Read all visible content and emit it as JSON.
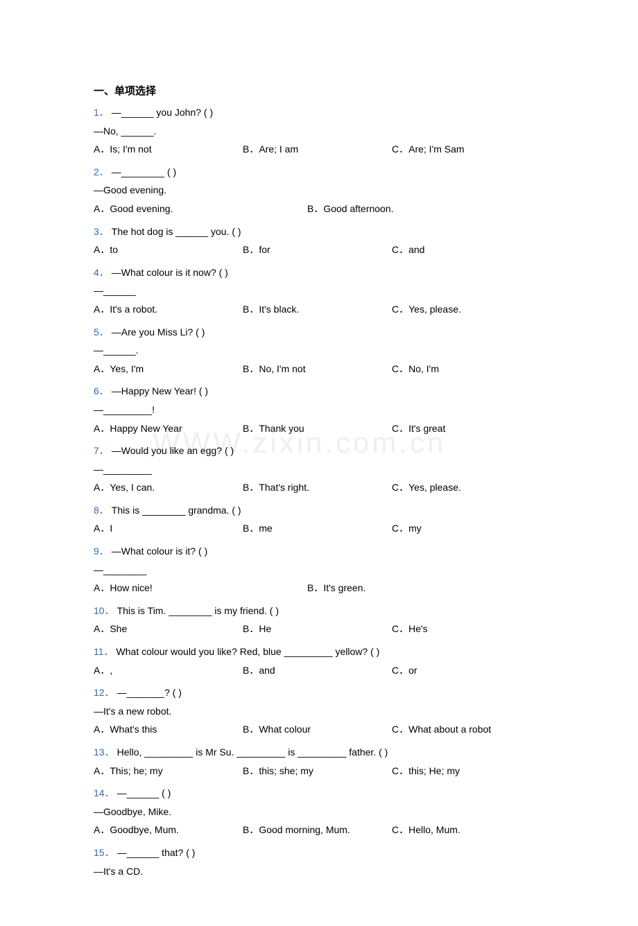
{
  "section_title": "一、单项选择",
  "watermark_text": "WWW.zixin.com.cn",
  "watermark_color": "#efefef",
  "question_num_color": "#2a6db5",
  "text_color": "#000000",
  "background_color": "#ffffff",
  "font_size_body": 14,
  "font_size_section": 15,
  "questions": [
    {
      "num": "1．",
      "lines": [
        "—______ you John? (    )",
        "—No, ______."
      ],
      "opts": [
        "A．Is; I'm not",
        "B．Are; I am",
        "C．Are; I'm Sam"
      ],
      "cols": 3
    },
    {
      "num": "2．",
      "lines": [
        "—________ (    )",
        "—Good evening."
      ],
      "opts": [
        "A．Good evening.",
        "B．Good afternoon."
      ],
      "cols": 2
    },
    {
      "num": "3．",
      "lines": [
        "The hot dog is ______ you. (    )"
      ],
      "opts": [
        "A．to",
        "B．for",
        "C．and"
      ],
      "cols": 3
    },
    {
      "num": "4．",
      "lines": [
        "—What colour is it now? (     )",
        "—______"
      ],
      "opts": [
        "A．It's a robot.",
        "B．It's black.",
        "C．Yes, please."
      ],
      "cols": 3
    },
    {
      "num": "5．",
      "lines": [
        "—Are you Miss Li? (    )",
        "—______."
      ],
      "opts": [
        "A．Yes, I'm",
        "B．No, I'm not",
        "C．No, I'm"
      ],
      "cols": 3
    },
    {
      "num": "6．",
      "lines": [
        "—Happy New Year! (    )",
        "—_________!"
      ],
      "opts": [
        "A．Happy New Year",
        "B．Thank you",
        "C．It's great"
      ],
      "cols": 3
    },
    {
      "num": "7．",
      "lines": [
        "—Would you like an egg? (    )",
        "—_________"
      ],
      "opts": [
        "A．Yes, I can.",
        "B．That's right.",
        "C．Yes, please."
      ],
      "cols": 3
    },
    {
      "num": "8．",
      "lines": [
        "This is ________ grandma. (    )"
      ],
      "opts": [
        "A．I",
        "B．me",
        "C．my"
      ],
      "cols": 3
    },
    {
      "num": "9．",
      "lines": [
        "—What colour is it? (    )",
        "—________"
      ],
      "opts": [
        "A．How nice!",
        "B．It's green."
      ],
      "cols": 2
    },
    {
      "num": "10．",
      "lines": [
        "This is Tim. ________ is my friend. (    )"
      ],
      "opts": [
        "A．She",
        "B．He",
        "C．He's"
      ],
      "cols": 3
    },
    {
      "num": "11．",
      "lines": [
        "What colour would you like? Red, blue _________ yellow? (    )"
      ],
      "opts": [
        "A．,",
        "B．and",
        "C．or"
      ],
      "cols": 3
    },
    {
      "num": "12．",
      "lines": [
        "—_______? (    )",
        "—It's a new robot."
      ],
      "opts": [
        "A．What's this",
        "B．What colour",
        "C．What about a robot"
      ],
      "cols": 3
    },
    {
      "num": "13．",
      "lines": [
        "Hello, _________ is Mr Su. _________ is _________ father. (    )"
      ],
      "opts": [
        "A．This; he; my",
        "B．this; she; my",
        "C．this; He; my"
      ],
      "cols": 3
    },
    {
      "num": "14．",
      "lines": [
        "—______ (    )",
        "—Goodbye, Mike."
      ],
      "opts": [
        "A．Goodbye, Mum.",
        "B．Good morning, Mum.",
        "C．Hello, Mum."
      ],
      "cols": 3
    },
    {
      "num": "15．",
      "lines": [
        "—______ that? (    )",
        "—It's a CD."
      ],
      "opts": [],
      "cols": 0
    }
  ]
}
